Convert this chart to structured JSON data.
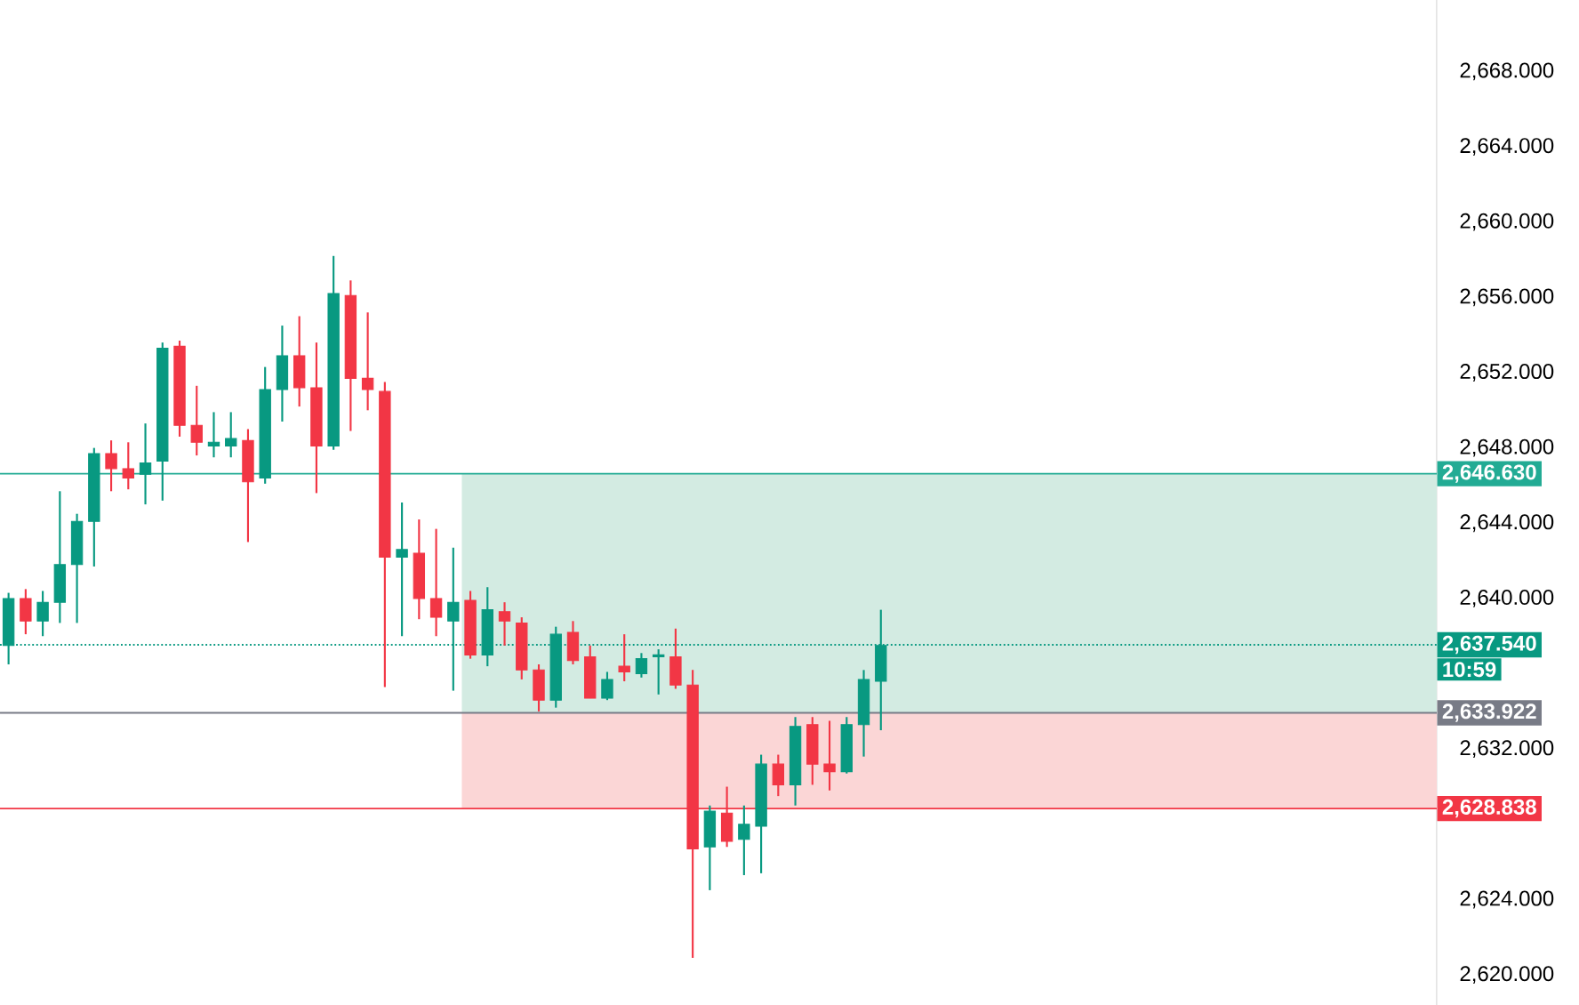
{
  "chart_data": {
    "type": "candlestick",
    "categories": [
      null,
      null,
      null,
      null,
      null,
      null,
      null,
      null,
      null,
      null,
      null,
      null,
      null,
      null,
      null,
      null,
      null,
      null,
      null,
      null,
      null,
      null,
      null,
      null,
      null,
      null,
      null,
      null,
      null,
      null,
      null,
      null,
      null,
      null,
      null,
      null,
      null,
      null,
      null,
      null,
      null,
      null,
      null,
      null,
      null,
      null,
      null,
      null,
      null,
      null,
      null,
      null,
      null,
      null,
      null,
      null,
      null,
      null,
      null,
      null,
      null,
      null,
      null,
      null,
      null,
      null,
      null,
      null,
      null,
      null,
      null,
      null,
      null,
      null,
      null,
      null,
      null,
      null,
      null,
      null,
      null,
      null,
      null,
      null
    ],
    "ohlc": [
      [
        2637.5,
        2640.3,
        2636.5,
        2640.0
      ],
      [
        2640.0,
        2640.5,
        2638.1,
        2638.8
      ],
      [
        2638.8,
        2640.4,
        2638.0,
        2639.8
      ],
      [
        2639.8,
        2645.7,
        2638.7,
        2641.8
      ],
      [
        2641.8,
        2644.5,
        2638.7,
        2644.1
      ],
      [
        2644.1,
        2648.0,
        2641.7,
        2647.7
      ],
      [
        2647.7,
        2648.4,
        2645.7,
        2646.9
      ],
      [
        2646.9,
        2648.3,
        2645.8,
        2646.4
      ],
      [
        2646.6,
        2649.3,
        2645.0,
        2647.2
      ],
      [
        2647.3,
        2653.6,
        2645.2,
        2653.3
      ],
      [
        2653.4,
        2653.7,
        2648.6,
        2649.2
      ],
      [
        2649.2,
        2651.3,
        2647.6,
        2648.3
      ],
      [
        2648.1,
        2649.9,
        2647.5,
        2648.3
      ],
      [
        2648.1,
        2649.9,
        2647.5,
        2648.5
      ],
      [
        2648.4,
        2649.0,
        2643.0,
        2646.2
      ],
      [
        2646.4,
        2652.3,
        2646.1,
        2651.1
      ],
      [
        2651.1,
        2654.5,
        2649.4,
        2652.9
      ],
      [
        2652.9,
        2655.0,
        2650.2,
        2651.2
      ],
      [
        2651.2,
        2653.6,
        2645.6,
        2648.1
      ],
      [
        2648.1,
        2658.2,
        2647.9,
        2656.2
      ],
      [
        2656.1,
        2656.9,
        2648.9,
        2651.7
      ],
      [
        2651.7,
        2655.2,
        2650.0,
        2651.1
      ],
      [
        2651.0,
        2651.5,
        2635.3,
        2642.2
      ],
      [
        2642.2,
        2645.1,
        2638.0,
        2642.6
      ],
      [
        2642.4,
        2644.2,
        2638.9,
        2640.0
      ],
      [
        2640.0,
        2643.7,
        2638.0,
        2639.0
      ],
      [
        2638.8,
        2642.7,
        2635.1,
        2639.8
      ],
      [
        2639.9,
        2640.4,
        2636.8,
        2637.0
      ],
      [
        2637.0,
        2640.6,
        2636.4,
        2639.4
      ],
      [
        2639.3,
        2639.8,
        2637.5,
        2638.8
      ],
      [
        2638.7,
        2639.0,
        2635.7,
        2636.2
      ],
      [
        2636.2,
        2636.5,
        2634.0,
        2634.6
      ],
      [
        2634.6,
        2638.5,
        2634.2,
        2638.1
      ],
      [
        2638.2,
        2638.8,
        2636.5,
        2636.7
      ],
      [
        2636.9,
        2637.5,
        2634.7,
        2634.7
      ],
      [
        2634.7,
        2636.1,
        2634.6,
        2635.7
      ],
      [
        2636.4,
        2638.1,
        2635.6,
        2636.1
      ],
      [
        2636.0,
        2637.1,
        2635.8,
        2636.8
      ],
      [
        2636.9,
        2637.3,
        2634.9,
        2637.0
      ],
      [
        2636.9,
        2638.4,
        2635.2,
        2635.4
      ],
      [
        2635.4,
        2636.2,
        2620.9,
        2626.7
      ],
      [
        2626.8,
        2629.0,
        2624.5,
        2628.7
      ],
      [
        2628.6,
        2630.0,
        2626.8,
        2627.1
      ],
      [
        2627.2,
        2629.0,
        2625.3,
        2628.0
      ],
      [
        2627.9,
        2631.7,
        2625.4,
        2631.2
      ],
      [
        2631.2,
        2631.7,
        2629.5,
        2630.1
      ],
      [
        2630.1,
        2633.7,
        2629.0,
        2633.2
      ],
      [
        2633.3,
        2633.7,
        2630.1,
        2631.2
      ],
      [
        2631.2,
        2633.5,
        2629.8,
        2630.8
      ],
      [
        2630.8,
        2633.7,
        2630.7,
        2633.3
      ],
      [
        2633.3,
        2636.2,
        2631.6,
        2635.7
      ],
      [
        2635.6,
        2639.4,
        2633.0,
        2637.5
      ],
      null,
      null,
      null,
      null,
      null,
      null,
      null,
      null,
      null,
      null,
      null,
      null,
      null,
      null,
      null,
      null,
      null,
      null,
      null,
      null,
      null,
      null,
      null,
      null,
      null,
      null,
      null,
      null,
      null,
      null,
      null,
      null
    ],
    "colors": [
      "#089981",
      "#f23645",
      "#089981",
      "#089981",
      "#089981",
      "#089981",
      "#f23645",
      "#f23645",
      "#089981",
      "#089981",
      "#f23645",
      "#f23645",
      "#089981",
      "#089981",
      "#f23645",
      "#089981",
      "#089981",
      "#f23645",
      "#f23645",
      "#089981",
      "#f23645",
      "#f23645",
      "#f23645",
      "#089981",
      "#f23645",
      "#f23645",
      "#089981",
      "#f23645",
      "#089981",
      "#f23645",
      "#f23645",
      "#f23645",
      "#089981",
      "#f23645",
      "#f23645",
      "#089981",
      "#f23645",
      "#089981",
      "#089981",
      "#f23645",
      "#f23645",
      "#089981",
      "#f23645",
      "#089981",
      "#089981",
      "#f23645",
      "#089981",
      "#f23645",
      "#f23645",
      "#089981",
      "#089981",
      "#089981",
      null,
      null,
      null,
      null,
      null,
      null,
      null,
      null,
      null,
      null,
      null,
      null,
      null,
      null,
      null,
      null,
      null,
      null,
      null,
      null,
      null,
      null,
      null,
      null,
      null,
      null,
      null,
      null,
      null,
      null,
      null,
      null
    ],
    "ylim": [
      2618.4,
      2671.8
    ],
    "yticks": [
      {
        "value": 2620,
        "label": "2,620.000"
      },
      {
        "value": 2624,
        "label": "2,624.000"
      },
      {
        "value": 2632,
        "label": "2,632.000"
      },
      {
        "value": 2640,
        "label": "2,640.000"
      },
      {
        "value": 2644,
        "label": "2,644.000"
      },
      {
        "value": 2648,
        "label": "2,648.000"
      },
      {
        "value": 2652,
        "label": "2,652.000"
      },
      {
        "value": 2656,
        "label": "2,656.000"
      },
      {
        "value": 2660,
        "label": "2,660.000"
      },
      {
        "value": 2664,
        "label": "2,664.000"
      },
      {
        "value": 2668,
        "label": "2,668.000"
      }
    ],
    "tick_labels": "y",
    "bands": [
      {
        "axis": "y",
        "from": 2633.922,
        "to": 2646.63,
        "color": "#d3ebe2"
      },
      {
        "axis": "y",
        "from": 2628.838,
        "to": 2633.922,
        "color": "#fbd6d6"
      }
    ],
    "ref_lines": [
      {
        "axis": "y",
        "value": 2646.63,
        "label": "2,646.630",
        "color": "#22ab94",
        "line_style": "solid"
      },
      {
        "axis": "y",
        "value": 2637.54,
        "label": "2,637.540",
        "color": "#089981",
        "line_style": "dotted"
      },
      {
        "axis": "y",
        "value": 2633.922,
        "label": "2,633.922",
        "color": "#787b86",
        "line_style": "solid"
      },
      {
        "axis": "y",
        "value": 2628.838,
        "label": "2,628.838",
        "color": "#f23645",
        "line_style": "solid"
      }
    ],
    "annotations": [
      "10:59"
    ]
  }
}
